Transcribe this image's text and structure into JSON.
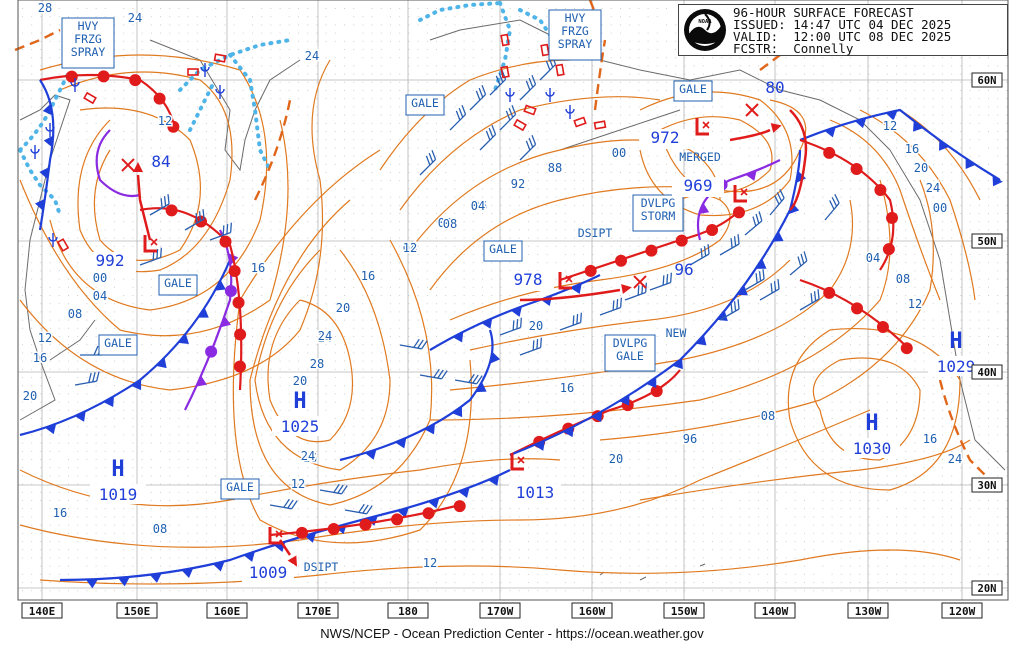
{
  "header": {
    "line1": "96-HOUR SURFACE FORECAST",
    "line2": "ISSUED: 14:47 UTC 04 DEC 2025",
    "line3": "VALID:  12:00 UTC 08 DEC 2025",
    "line4": "FCSTR:  Connelly",
    "logo_text": "NOAA"
  },
  "footer": "NWS/NCEP - Ocean Prediction Center - https://ocean.weather.gov",
  "lon_labels": [
    "140E",
    "150E",
    "160E",
    "170E",
    "180",
    "170W",
    "160W",
    "150W",
    "140W",
    "130W",
    "120W"
  ],
  "lat_labels": [
    "60N",
    "50N",
    "40N",
    "30N",
    "20N"
  ],
  "highs": [
    {
      "label": "H",
      "value": "1025"
    },
    {
      "label": "H",
      "value": "1019"
    },
    {
      "label": "H",
      "value": "1030"
    },
    {
      "label": "H",
      "value": "1029"
    }
  ],
  "lows": [
    {
      "value": "992"
    },
    {
      "value": "978"
    },
    {
      "value": "969"
    },
    {
      "value": "972"
    },
    {
      "value": "1013"
    },
    {
      "value": "1009"
    }
  ],
  "short_values": [
    "84",
    "96",
    "80"
  ],
  "boxes": [
    "HVY\nFRZG\nSPRAY",
    "HVY\nFRZG\nSPRAY",
    "GALE",
    "GALE",
    "GALE",
    "GALE",
    "GALE",
    "GALE",
    "DVLPG\nSTORM",
    "DVLPG\nGALE"
  ],
  "texts": [
    "DSIPT",
    "DSIPT",
    "MERGED",
    "NEW"
  ],
  "isobar_labels": [
    "28",
    "24",
    "24",
    "12",
    "16",
    "00",
    "04",
    "08",
    "12",
    "16",
    "20",
    "24",
    "20",
    "16",
    "12",
    "16",
    "08",
    "04",
    "00",
    "96",
    "92",
    "88",
    "00",
    "04",
    "08",
    "12",
    "16",
    "20",
    "24",
    "28",
    "24",
    "20",
    "16",
    "12",
    "20",
    "96",
    "08",
    "12",
    "16",
    "20",
    "24",
    "00",
    "04",
    "08",
    "12",
    "16",
    "24"
  ],
  "colors": {
    "isobar": "#e07a20",
    "cold_front": "#1f3fd8",
    "warm_front": "#e01b1b",
    "occluded": "#8a2be2",
    "ice": "#4fb4e8",
    "grid": "#b5b5b5",
    "label": "#2060b0",
    "land": "#6b6b6b"
  }
}
